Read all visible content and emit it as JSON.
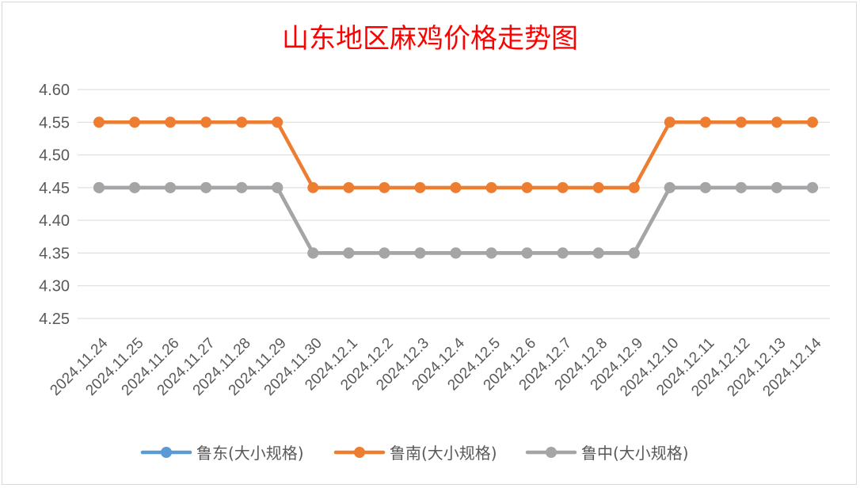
{
  "chart_data": {
    "type": "line",
    "title": "山东地区麻鸡价格走势图",
    "xlabel": "",
    "ylabel": "",
    "categories": [
      "2024.11.24",
      "2024.11.25",
      "2024.11.26",
      "2024.11.27",
      "2024.11.28",
      "2024.11.29",
      "2024.11.30",
      "2024.12.1",
      "2024.12.2",
      "2024.12.3",
      "2024.12.4",
      "2024.12.5",
      "2024.12.6",
      "2024.12.7",
      "2024.12.8",
      "2024.12.9",
      "2024.12.10",
      "2024.12.11",
      "2024.12.12",
      "2024.12.13",
      "2024.12.14"
    ],
    "ylim": [
      4.25,
      4.6
    ],
    "yticks": [
      "4.60",
      "4.55",
      "4.50",
      "4.45",
      "4.40",
      "4.35",
      "4.30",
      "4.25"
    ],
    "grid": true,
    "legend_position": "bottom",
    "series": [
      {
        "name": "鲁东(大小规格)",
        "color": "#5b9bd5",
        "values": [
          4.45,
          4.45,
          4.45,
          4.45,
          4.45,
          4.45,
          4.35,
          4.35,
          4.35,
          4.35,
          4.35,
          4.35,
          4.35,
          4.35,
          4.35,
          4.35,
          4.45,
          4.45,
          4.45,
          4.45,
          4.45
        ]
      },
      {
        "name": "鲁南(大小规格)",
        "color": "#ed7d31",
        "values": [
          4.55,
          4.55,
          4.55,
          4.55,
          4.55,
          4.55,
          4.45,
          4.45,
          4.45,
          4.45,
          4.45,
          4.45,
          4.45,
          4.45,
          4.45,
          4.45,
          4.55,
          4.55,
          4.55,
          4.55,
          4.55
        ]
      },
      {
        "name": "鲁中(大小规格)",
        "color": "#a5a5a5",
        "values": [
          4.45,
          4.45,
          4.45,
          4.45,
          4.45,
          4.45,
          4.35,
          4.35,
          4.35,
          4.35,
          4.35,
          4.35,
          4.35,
          4.35,
          4.35,
          4.35,
          4.45,
          4.45,
          4.45,
          4.45,
          4.45
        ]
      }
    ]
  }
}
